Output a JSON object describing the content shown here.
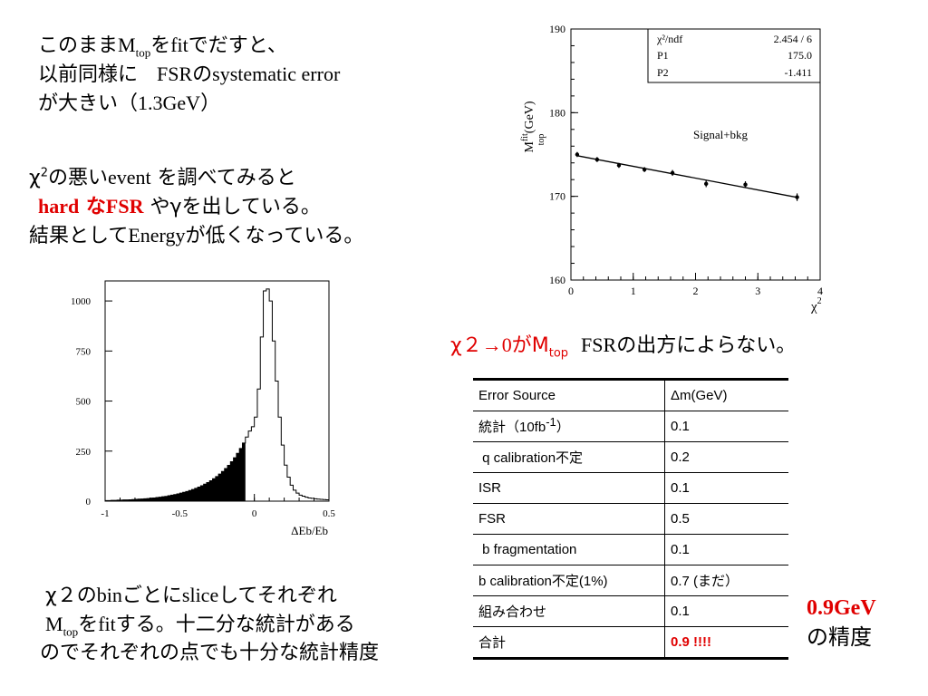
{
  "text1": {
    "line1_a": "このまま",
    "line1_m": "M",
    "line1_sub": "top",
    "line1_b": "を",
    "line1_fit": "fit",
    "line1_c": "でだすと、",
    "line2_a": "以前同様に",
    "line2_fsr": "FSR",
    "line2_no": "の",
    "line2_b": "systematic error",
    "line3_a": "が大きい（",
    "line3_val": "1.3GeV",
    "line3_b": "）"
  },
  "text2": {
    "l1_chi": "χ",
    "l1_sup": "2",
    "l1_a": "の悪い",
    "l1_event": "event",
    "l1_b": " を調べてみると",
    "l2_hard": "hard",
    "l2_na": " な",
    "l2_fsr": "FSR",
    "l2_b": " やγを出している。",
    "l3_a": "結果として",
    "l3_energy": "Energy",
    "l3_b": "が低くなっている。"
  },
  "note": {
    "chi": "χ",
    "sup": "２",
    "arrow": "→",
    "zero": "0",
    "ga": "が",
    "m": "M",
    "sub": "top",
    "fsr": "FSR",
    "rest": "の出方によらない。"
  },
  "bottom_text": {
    "l1_chi": "χ",
    "l1_sup": "２",
    "l1_no": "の",
    "l1_bin": "bin",
    "l1_a": "ごとに",
    "l1_slice": "slice",
    "l1_b": "してそれぞれ",
    "l2_m": "M",
    "l2_sub": "top",
    "l2_wo": "を",
    "l2_fit": "fit",
    "l2_b": "する。十二分な統計がある",
    "l3": "のでそれぞれの点でも十分な統計精度"
  },
  "table": {
    "header": [
      "Error Source",
      "Δm(GeV)"
    ],
    "rows": [
      {
        "src_a": "統計（10fb",
        "src_sup": "-1",
        "src_b": "）",
        "val": "0.1"
      },
      {
        "src": " q calibration不定",
        "val": "0.2"
      },
      {
        "src": "ISR",
        "val": "0.1"
      },
      {
        "src": "FSR",
        "val": "0.5"
      },
      {
        "src": " b fragmentation",
        "val": "0.1"
      },
      {
        "src": "b calibration不定(1%)",
        "val": "0.7 (まだ）"
      },
      {
        "src": "組み合わせ",
        "val": "0.1"
      }
    ],
    "total_label": "合計",
    "total_value": "0.9 !!!!"
  },
  "precision": {
    "value": "0.9GeV",
    "label": "の精度"
  },
  "scatter_chart": {
    "fit_box": {
      "row1_label": "χ²/ndf",
      "row1_value": "2.454   /   6",
      "row2_label": "P1",
      "row2_value": "175.0",
      "row3_label": "P2",
      "row3_value": "-1.411"
    },
    "legend_text": "Signal+bkg",
    "ylabel_m": "M",
    "ylabel_sup": "fit",
    "ylabel_sub": "top",
    "ylabel_unit": "(GeV)",
    "xlabel": "χ",
    "xlabel_sup": "2"
  },
  "chart_data": [
    {
      "type": "scatter",
      "title": "",
      "xlabel": "χ2",
      "ylabel": "Mfit top (GeV)",
      "xlim": [
        0,
        4
      ],
      "ylim": [
        160,
        190
      ],
      "xticks": [
        0,
        1,
        2,
        3,
        4
      ],
      "yticks": [
        160,
        170,
        180,
        190
      ],
      "x": [
        0.1,
        0.42,
        0.77,
        1.18,
        1.63,
        2.17,
        2.8,
        3.63
      ],
      "y": [
        175.0,
        174.4,
        173.7,
        173.2,
        172.8,
        171.5,
        171.4,
        169.9
      ],
      "yerr": [
        0.3,
        0.3,
        0.3,
        0.3,
        0.35,
        0.4,
        0.4,
        0.45
      ],
      "fit_line": {
        "p1": 175.0,
        "p2": -1.411
      },
      "grid": false
    },
    {
      "type": "bar",
      "title": "",
      "xlabel": "ΔEb/Eb",
      "ylabel": "",
      "xlim": [
        -1,
        0.5
      ],
      "ylim": [
        0,
        1100
      ],
      "xticks": [
        -1,
        -0.5,
        0,
        0.5
      ],
      "yticks": [
        0,
        250,
        500,
        750,
        1000
      ],
      "bin_start": -1.0,
      "bin_width": 0.02,
      "fill_below": -0.06,
      "values": [
        3,
        3,
        4,
        4,
        5,
        5,
        6,
        6,
        7,
        8,
        9,
        10,
        11,
        12,
        13,
        15,
        16,
        18,
        20,
        22,
        24,
        27,
        30,
        33,
        36,
        40,
        44,
        48,
        53,
        58,
        64,
        70,
        77,
        85,
        93,
        102,
        112,
        123,
        135,
        148,
        163,
        179,
        197,
        217,
        239,
        263,
        290,
        320,
        350,
        372,
        420,
        560,
        820,
        1050,
        1060,
        1000,
        800,
        600,
        420,
        280,
        180,
        120,
        80,
        55,
        40,
        30,
        25,
        20,
        16,
        14,
        12,
        10,
        9,
        8,
        7
      ]
    }
  ]
}
